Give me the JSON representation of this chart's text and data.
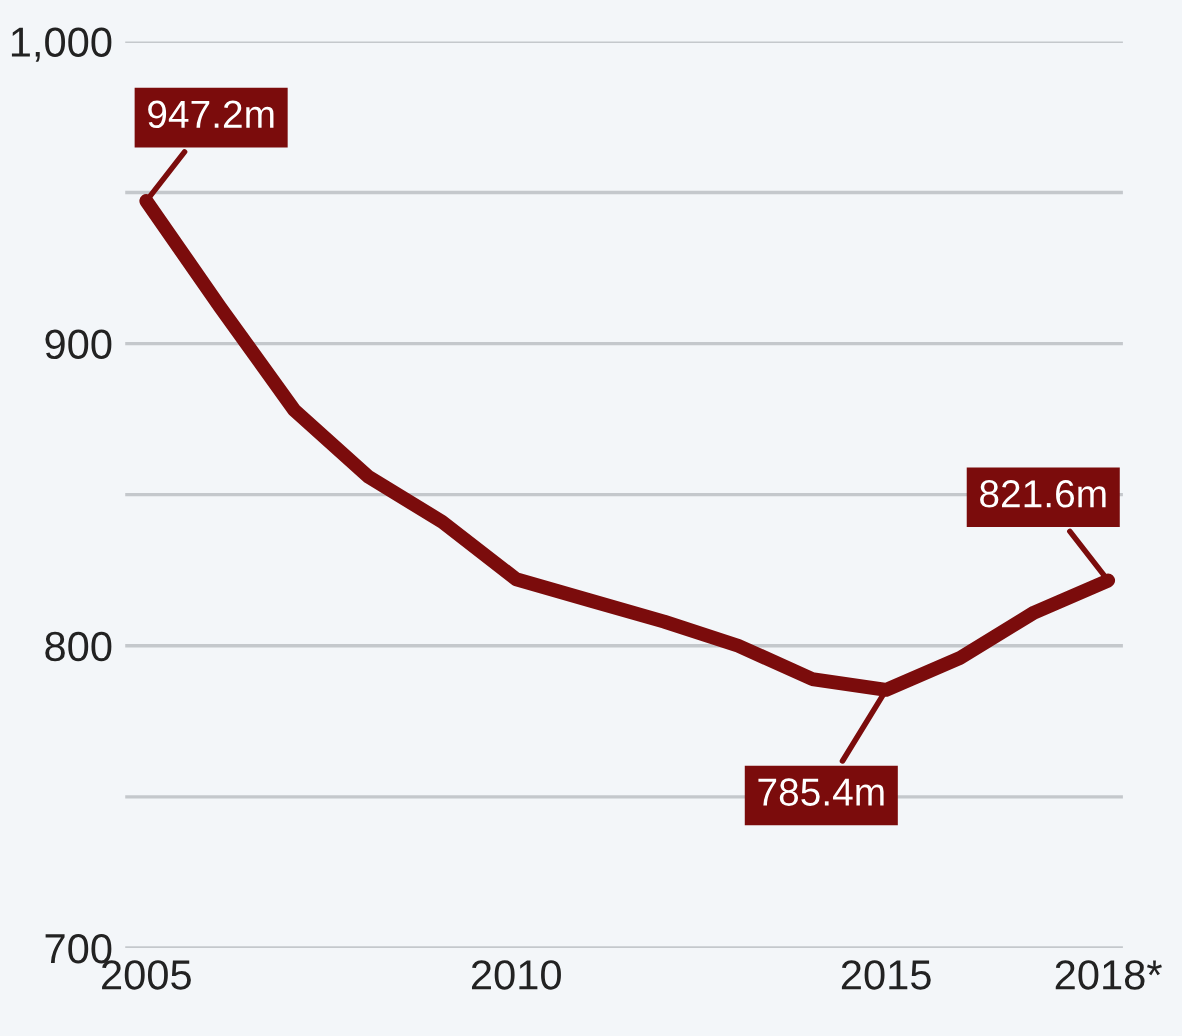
{
  "chart_data": {
    "type": "line",
    "x": [
      2005,
      2006,
      2007,
      2008,
      2009,
      2010,
      2011,
      2012,
      2013,
      2014,
      2015,
      2016,
      2017,
      2018
    ],
    "series": [
      {
        "color": "#7b0c0c",
        "values": [
          947.2,
          912,
          878,
          856,
          841,
          822,
          815,
          808,
          800,
          789,
          785.4,
          796,
          811,
          821.6
        ]
      }
    ],
    "xlim": [
      2004.7,
      2018.2
    ],
    "xticks": [
      2005,
      2010,
      2015,
      {
        "value": 2018,
        "label": "2018*"
      }
    ],
    "ylim": [
      700,
      1000
    ],
    "yticks": [
      {
        "value": 700,
        "label": "700"
      },
      {
        "value": 750,
        "label": null
      },
      {
        "value": 800,
        "label": "800"
      },
      {
        "value": 850,
        "label": null
      },
      {
        "value": 900,
        "label": "900"
      },
      {
        "value": 950,
        "label": null
      },
      {
        "value": 1000,
        "label": "1,000"
      }
    ],
    "grid": "y",
    "marker": "none",
    "line_style": "solid",
    "annotations": [
      {
        "text": "947.2m",
        "x": 2005,
        "y": 947.2
      },
      {
        "text": "785.4m",
        "x": 2015,
        "y": 785.4
      },
      {
        "text": "821.6m",
        "x": 2018,
        "y": 821.6
      }
    ]
  }
}
